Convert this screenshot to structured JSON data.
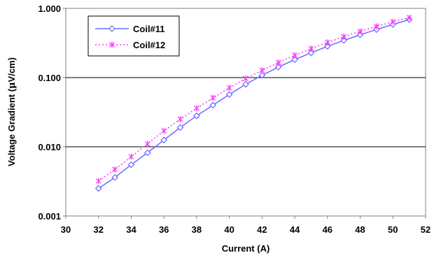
{
  "chart_data": {
    "type": "line",
    "title": "",
    "xlabel": "Current (A)",
    "ylabel_prefix": "Voltage Gradient (",
    "ylabel_mu": "μ",
    "ylabel_suffix": "V/cm)",
    "xlim": [
      30,
      52
    ],
    "ylim": [
      0.001,
      1.0
    ],
    "yscale": "log",
    "x_ticks": [
      "30",
      "32",
      "34",
      "36",
      "38",
      "40",
      "42",
      "44",
      "46",
      "48",
      "50",
      "52"
    ],
    "y_ticks": [
      "0.001",
      "0.010",
      "0.100",
      "1.000"
    ],
    "grid": "horizontal major lines",
    "legend_position": "top-left",
    "x": [
      32,
      33,
      34,
      35,
      36,
      37,
      38,
      39,
      40,
      41,
      42,
      43,
      44,
      45,
      46,
      47,
      48,
      49,
      50,
      51
    ],
    "series": [
      {
        "name": "Coil#11",
        "color": "#6b6bff",
        "style": "solid",
        "marker": "diamond",
        "values": [
          0.0025,
          0.0036,
          0.0055,
          0.0082,
          0.0125,
          0.019,
          0.028,
          0.04,
          0.057,
          0.08,
          0.108,
          0.142,
          0.182,
          0.228,
          0.283,
          0.345,
          0.415,
          0.495,
          0.585,
          0.69
        ]
      },
      {
        "name": "Coil#12",
        "color": "#ff33ff",
        "style": "dotted",
        "marker": "asterisk",
        "values": [
          0.0032,
          0.0047,
          0.0072,
          0.011,
          0.017,
          0.025,
          0.036,
          0.051,
          0.071,
          0.097,
          0.127,
          0.165,
          0.21,
          0.262,
          0.322,
          0.39,
          0.465,
          0.55,
          0.64,
          0.735
        ]
      }
    ]
  }
}
